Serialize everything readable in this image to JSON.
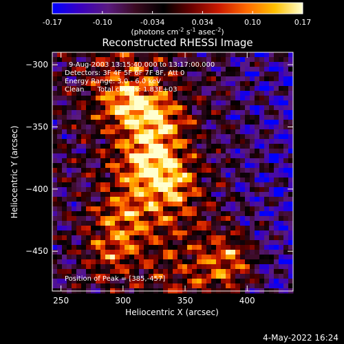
{
  "chart_data": {
    "type": "heatmap",
    "title": "Reconstructed RHESSI Image",
    "xlabel": "Heliocentric X (arcsec)",
    "ylabel": "Heliocentric Y (arcsec)",
    "xlim": [
      243,
      437
    ],
    "ylim": [
      -482,
      -290
    ],
    "xticks": [
      250,
      300,
      350,
      400
    ],
    "yticks": [
      -300,
      -350,
      -400,
      -450
    ],
    "colorbar": {
      "min": -0.17,
      "max": 0.17,
      "ticks": [
        "-0.17",
        "-0.10",
        "-0.034",
        "0.034",
        "0.10",
        "0.17"
      ],
      "unit_label": "(photons cm",
      "unit_exp1": "-2",
      "unit_mid": " s",
      "unit_exp2": "-1",
      "unit_mid2": " asec",
      "unit_exp3": "-2",
      "unit_close": ")",
      "colormap": [
        "#0000ff",
        "#3a00c0",
        "#5a1a80",
        "#3a0a20",
        "#000000",
        "#6a0000",
        "#cc1a00",
        "#ff6a00",
        "#ffc000",
        "#ffffd0"
      ]
    },
    "annotations": {
      "time_range": "9-Aug-2003 13:15:40.000 to 13:17:00.000",
      "detectors": "Detectors: 3F 4F 5F 6F 7F 8F, Att 0",
      "energy_range": "Energy Range: 3.0 - 6.0 keV",
      "method": "Clean      Total counts: 1.83E+03",
      "peak": "Position of Peak = [385,-457]"
    },
    "peak_position": [
      385,
      -457
    ],
    "bright_features": [
      {
        "x": 305,
        "y": -330,
        "level": 0.16
      },
      {
        "x": 330,
        "y": -345,
        "level": 0.15
      },
      {
        "x": 320,
        "y": -380,
        "level": 0.15
      },
      {
        "x": 340,
        "y": -395,
        "level": 0.13
      },
      {
        "x": 300,
        "y": -420,
        "level": 0.12
      },
      {
        "x": 290,
        "y": -450,
        "level": 0.12
      },
      {
        "x": 385,
        "y": -457,
        "level": 0.17
      }
    ]
  },
  "footer": {
    "timestamp": "4-May-2022 16:24"
  }
}
